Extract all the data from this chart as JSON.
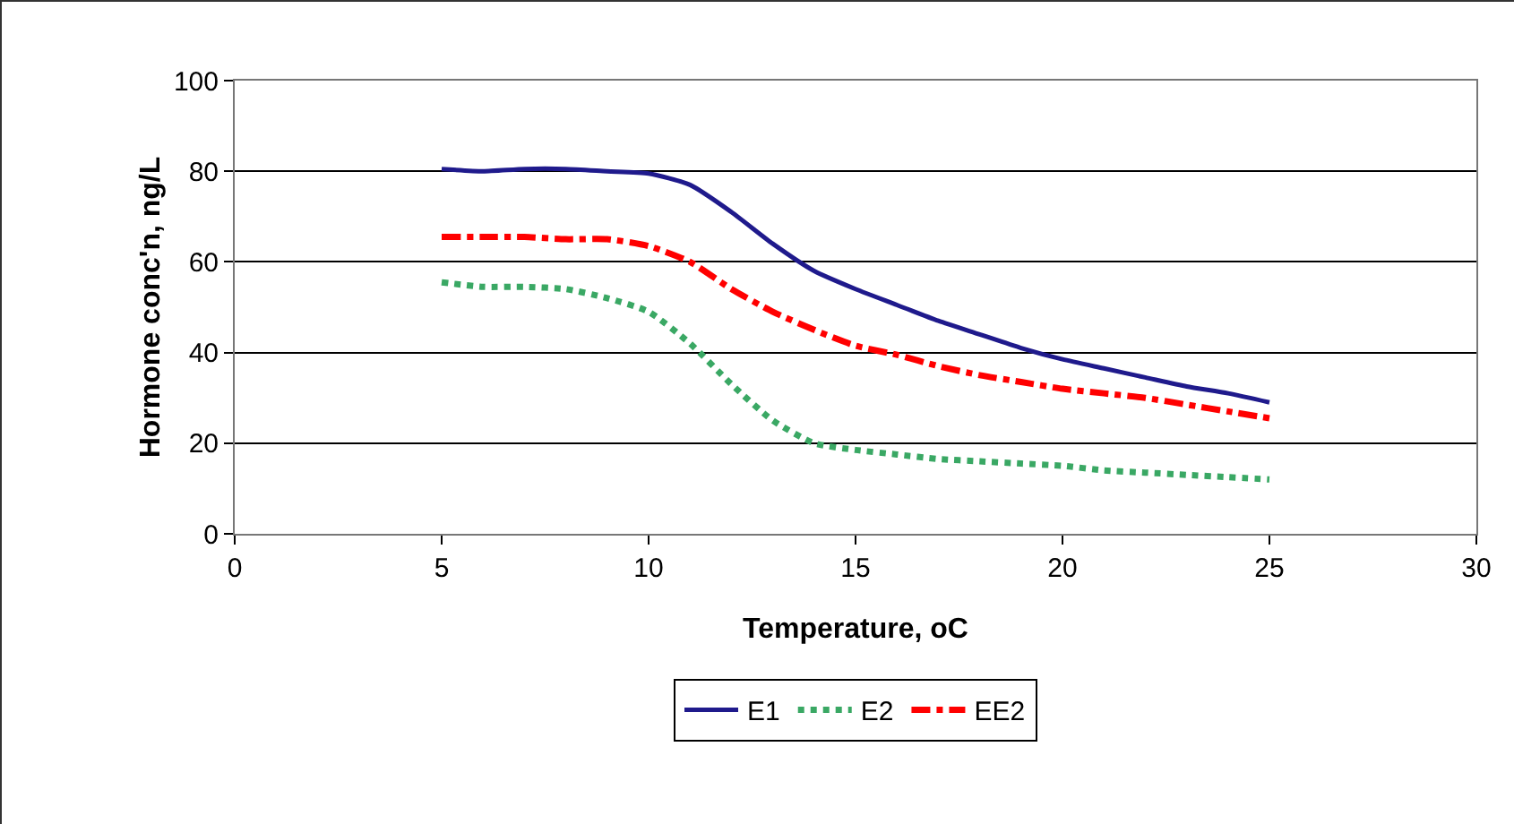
{
  "chart_data": {
    "type": "line",
    "xlabel": "Temperature, oC",
    "ylabel": "Hormone conc'n, ng/L",
    "x": [
      5,
      6,
      7,
      8,
      9,
      10,
      11,
      12,
      13,
      14,
      15,
      16,
      17,
      18,
      19,
      20,
      21,
      22,
      23,
      24,
      25
    ],
    "series": [
      {
        "name": "E1",
        "color": "#1f1a8c",
        "line_style": "solid",
        "values": [
          80.5,
          80,
          80.5,
          80.5,
          80,
          79.5,
          77,
          71,
          64,
          58,
          54,
          50.5,
          47,
          44,
          41,
          38.5,
          36.5,
          34.5,
          32.5,
          31,
          29
        ]
      },
      {
        "name": "E2",
        "color": "#3aa864",
        "line_style": "dotted",
        "values": [
          55.5,
          54.5,
          54.5,
          54,
          52,
          49,
          42,
          33,
          25,
          20,
          18.5,
          17.5,
          16.5,
          16,
          15.5,
          15,
          14,
          13.5,
          13,
          12.5,
          12
        ]
      },
      {
        "name": "EE2",
        "color": "#ff0000",
        "line_style": "dashed",
        "values": [
          65.5,
          65.5,
          65.5,
          65,
          65,
          63.5,
          60,
          54,
          49,
          45,
          41.5,
          39.5,
          37,
          35,
          33.5,
          32,
          31,
          30,
          28.5,
          27,
          25.5
        ]
      }
    ],
    "xlim": [
      0,
      30
    ],
    "xticks": [
      0,
      5,
      10,
      15,
      20,
      25,
      30
    ],
    "ylim": [
      0,
      100
    ],
    "yticks": [
      0,
      20,
      40,
      60,
      80,
      100
    ],
    "grid": "y",
    "legend": "bottom",
    "marker": "none"
  }
}
